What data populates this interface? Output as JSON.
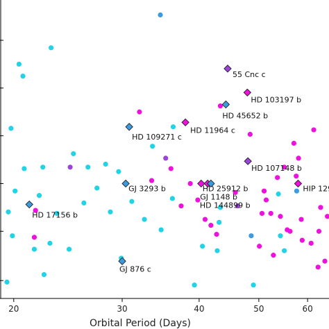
{
  "chart_data": {
    "type": "scatter",
    "title": "",
    "xlabel": "Orbital Period (Days)",
    "ylabel": "",
    "xscale": "log",
    "xlim": [
      19.0,
      65.0
    ],
    "ylim": [
      0,
      1
    ],
    "x_ticks": [
      20,
      30,
      40,
      50,
      60
    ],
    "x_tick_labels": [
      "20",
      "30",
      "40",
      "50",
      "60"
    ],
    "colors": {
      "cyan": "#22d3e6",
      "magenta": "#ee11dd",
      "blue": "#3a9be0",
      "purple": "#9a44d8"
    },
    "series": [
      {
        "marker": "circle",
        "color": "#22d3e6",
        "points": [
          [
            19.5,
            0.055
          ],
          [
            19.6,
            0.29
          ],
          [
            19.8,
            0.57
          ],
          [
            19.9,
            0.21
          ],
          [
            20.1,
            0.36
          ],
          [
            20.4,
            0.785
          ],
          [
            20.7,
            0.745
          ],
          [
            20.8,
            0.435
          ],
          [
            21.6,
            0.165
          ],
          [
            22.0,
            0.345
          ],
          [
            22.3,
            0.44
          ],
          [
            22.4,
            0.08
          ],
          [
            22.9,
            0.185
          ],
          [
            23.0,
            0.84
          ],
          [
            23.5,
            0.285
          ],
          [
            24.6,
            0.165
          ],
          [
            25.0,
            0.485
          ],
          [
            26.0,
            0.32
          ],
          [
            26.4,
            0.44
          ],
          [
            27.3,
            0.37
          ],
          [
            28.2,
            0.45
          ],
          [
            28.7,
            0.29
          ],
          [
            29.6,
            0.425
          ],
          [
            29.9,
            0.135
          ],
          [
            31.1,
            0.325
          ],
          [
            32.6,
            0.265
          ],
          [
            33.6,
            0.51
          ],
          [
            34.7,
            0.23
          ],
          [
            36.2,
            0.335
          ],
          [
            36.3,
            0.575
          ],
          [
            39.3,
            0.045
          ],
          [
            40.5,
            0.175
          ],
          [
            42.8,
            0.16
          ],
          [
            43.1,
            0.255
          ],
          [
            43.3,
            0.305
          ],
          [
            49.0,
            0.045
          ],
          [
            53.8,
            0.35
          ],
          [
            54.2,
            0.21
          ],
          [
            55.0,
            0.16
          ]
        ]
      },
      {
        "marker": "circle",
        "color": "#ee11dd",
        "points": [
          [
            21.6,
            0.205
          ],
          [
            21.7,
            0.295
          ],
          [
            32.0,
            0.625
          ],
          [
            33.5,
            0.395
          ],
          [
            36.0,
            0.435
          ],
          [
            37.4,
            0.31
          ],
          [
            38.7,
            0.385
          ],
          [
            39.8,
            0.33
          ],
          [
            40.9,
            0.265
          ],
          [
            41.8,
            0.245
          ],
          [
            42.7,
            0.215
          ],
          [
            43.3,
            0.645
          ],
          [
            45.8,
            0.355
          ],
          [
            48.4,
            0.55
          ],
          [
            50.1,
            0.175
          ],
          [
            50.6,
            0.285
          ],
          [
            51.0,
            0.36
          ],
          [
            51.4,
            0.33
          ],
          [
            52.3,
            0.285
          ],
          [
            52.8,
            0.145
          ],
          [
            53.6,
            0.405
          ],
          [
            54.2,
            0.275
          ],
          [
            55.0,
            0.44
          ],
          [
            55.6,
            0.23
          ],
          [
            56.2,
            0.225
          ],
          [
            57.0,
            0.52
          ],
          [
            57.5,
            0.41
          ],
          [
            58.0,
            0.47
          ],
          [
            58.6,
            0.265
          ],
          [
            58.8,
            0.195
          ],
          [
            60.8,
            0.185
          ],
          [
            61.4,
            0.565
          ],
          [
            62.4,
            0.105
          ],
          [
            62.6,
            0.225
          ],
          [
            63.0,
            0.305
          ],
          [
            64.0,
            0.125
          ],
          [
            64.6,
            0.275
          ]
        ]
      },
      {
        "marker": "circle",
        "color": "#3a9be0",
        "points": [
          [
            34.6,
            0.95
          ],
          [
            48.6,
            0.21
          ],
          [
            57.6,
            0.36
          ]
        ]
      },
      {
        "marker": "circle",
        "color": "#9a44d8",
        "points": [
          [
            24.7,
            0.44
          ],
          [
            35.3,
            0.47
          ],
          [
            46.2,
            0.31
          ]
        ]
      }
    ],
    "annotations": [
      {
        "label": "55 Cnc c",
        "x": 44.5,
        "y": 0.77,
        "color": "#9a44d8"
      },
      {
        "label": "HD 103197 b",
        "x": 47.9,
        "y": 0.69,
        "color": "#ee11dd"
      },
      {
        "label": "HD 45652 b",
        "x": 44.2,
        "y": 0.65,
        "color": "#3a9be0"
      },
      {
        "label": "HD 11964 c",
        "x": 38.0,
        "y": 0.59,
        "color": "#ee11dd"
      },
      {
        "label": "HD 109271 c",
        "x": 30.8,
        "y": 0.575,
        "color": "#3a9be0"
      },
      {
        "label": "HD 107148 b",
        "x": 48.0,
        "y": 0.46,
        "color": "#9a44d8"
      },
      {
        "label": "GJ 3293 b",
        "x": 30.4,
        "y": 0.385,
        "color": "#3a9be0"
      },
      {
        "label": "HD 25912 b",
        "x": 40.3,
        "y": 0.385,
        "color": "#ee11dd"
      },
      {
        "label": "GJ 1148 b",
        "x": 41.3,
        "y": 0.385,
        "color": "#ee11dd"
      },
      {
        "label": "HD 144899 b",
        "x": 41.8,
        "y": 0.385,
        "color": "#3a9be0"
      },
      {
        "label": "HIP 129",
        "x": 57.9,
        "y": 0.385,
        "color": "#ee11dd"
      },
      {
        "label": "HD 17156 b",
        "x": 21.2,
        "y": 0.315,
        "color": "#3a9be0"
      },
      {
        "label": "GJ 876 c",
        "x": 30.0,
        "y": 0.125,
        "color": "#3a9be0"
      }
    ]
  }
}
